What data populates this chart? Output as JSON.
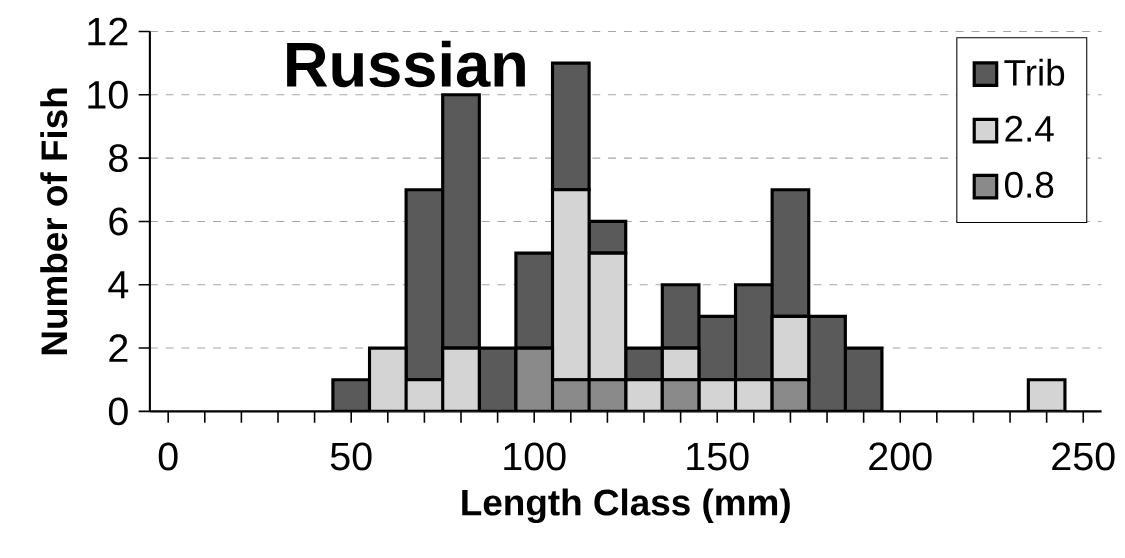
{
  "chart_data": {
    "type": "bar",
    "title": "Russian",
    "xlabel": "Length Class (mm)",
    "ylabel": "Number of Fish",
    "stacked": true,
    "x": [
      50,
      60,
      70,
      80,
      90,
      100,
      110,
      120,
      130,
      140,
      150,
      160,
      170,
      180,
      190,
      200,
      210,
      220,
      230,
      240
    ],
    "series": [
      {
        "name": "0.8",
        "color": "#8a8a8a",
        "values": [
          0,
          0,
          0,
          0,
          0,
          2,
          1,
          1,
          0,
          1,
          0,
          0,
          1,
          0,
          0,
          0,
          0,
          0,
          0,
          0
        ]
      },
      {
        "name": "2.4",
        "color": "#d4d4d4",
        "values": [
          0,
          2,
          1,
          2,
          0,
          0,
          6,
          4,
          1,
          1,
          1,
          1,
          2,
          0,
          0,
          0,
          0,
          0,
          0,
          1
        ]
      },
      {
        "name": "Trib",
        "color": "#5a5a5a",
        "values": [
          1,
          0,
          6,
          8,
          2,
          3,
          4,
          1,
          1,
          2,
          2,
          3,
          4,
          3,
          2,
          0,
          0,
          0,
          0,
          0
        ]
      }
    ],
    "xlim": [
      -5,
      255
    ],
    "ylim": [
      0,
      12
    ],
    "xticks": [
      0,
      {
        "value": 10,
        "label": null
      },
      {
        "value": 20,
        "label": null
      },
      {
        "value": 30,
        "label": null
      },
      {
        "value": 40,
        "label": null
      },
      50,
      {
        "value": 60,
        "label": null
      },
      {
        "value": 70,
        "label": null
      },
      {
        "value": 80,
        "label": null
      },
      {
        "value": 90,
        "label": null
      },
      100,
      {
        "value": 110,
        "label": null
      },
      {
        "value": 120,
        "label": null
      },
      {
        "value": 130,
        "label": null
      },
      {
        "value": 140,
        "label": null
      },
      150,
      {
        "value": 160,
        "label": null
      },
      {
        "value": 170,
        "label": null
      },
      {
        "value": 180,
        "label": null
      },
      {
        "value": 190,
        "label": null
      },
      200,
      {
        "value": 210,
        "label": null
      },
      {
        "value": 220,
        "label": null
      },
      {
        "value": 230,
        "label": null
      },
      {
        "value": 240,
        "label": null
      },
      250
    ],
    "yticks": [
      0,
      2,
      4,
      6,
      8,
      10,
      12
    ],
    "grid": "y",
    "legend": "top right"
  }
}
